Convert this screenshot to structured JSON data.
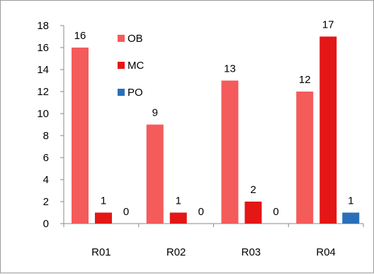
{
  "chart_data": {
    "type": "bar",
    "categories": [
      "R01",
      "R02",
      "R03",
      "R04"
    ],
    "series": [
      {
        "name": "OB",
        "values": [
          16,
          9,
          13,
          12
        ],
        "color": "#f45b5b"
      },
      {
        "name": "MC",
        "values": [
          1,
          1,
          2,
          17
        ],
        "color": "#e41616"
      },
      {
        "name": "PO",
        "values": [
          0,
          0,
          0,
          1
        ],
        "color": "#2a6fb8"
      }
    ],
    "title": "",
    "xlabel": "",
    "ylabel": "",
    "ylim": [
      0,
      18
    ],
    "yticks": [
      0,
      2,
      4,
      6,
      8,
      10,
      12,
      14,
      16,
      18
    ],
    "data_labels": true,
    "grid": false,
    "legend": "inside-top-left"
  }
}
